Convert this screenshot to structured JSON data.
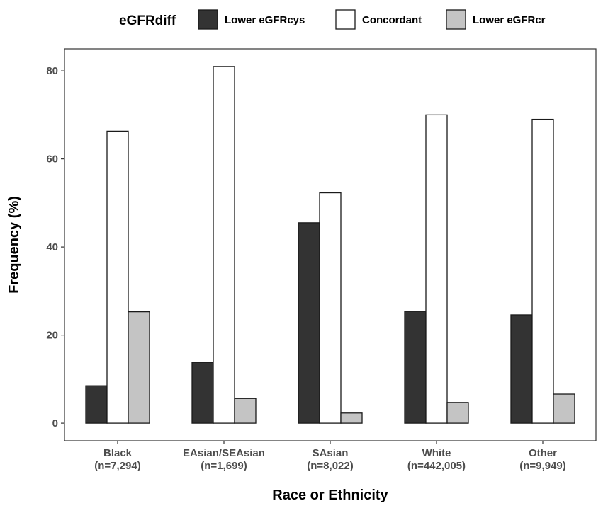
{
  "chart_data": {
    "type": "bar",
    "categories": [
      "Black\n(n=7,294)",
      "EAsian/SEAsian\n(n=1,699)",
      "SAsian\n(n=8,022)",
      "White\n(n=442,005)",
      "Other\n(n=9,949)"
    ],
    "series": [
      {
        "name": "Lower eGFRcys",
        "color": "#333333",
        "values": [
          8.5,
          13.8,
          45.5,
          25.4,
          24.6
        ]
      },
      {
        "name": "Concordant",
        "color": "#ffffff",
        "values": [
          66.3,
          81.0,
          52.3,
          70.0,
          69.0
        ]
      },
      {
        "name": "Lower eGFRcr",
        "color": "#c4c4c4",
        "values": [
          25.3,
          5.6,
          2.3,
          4.7,
          6.6
        ]
      }
    ],
    "legend_title": "eGFRdiff",
    "legend_position": "top",
    "xlabel": "Race or Ethnicity",
    "ylabel": "Frequency (%)",
    "ylim": [
      -4,
      85
    ],
    "yticks": [
      0,
      20,
      40,
      60,
      80
    ],
    "grid": false
  }
}
